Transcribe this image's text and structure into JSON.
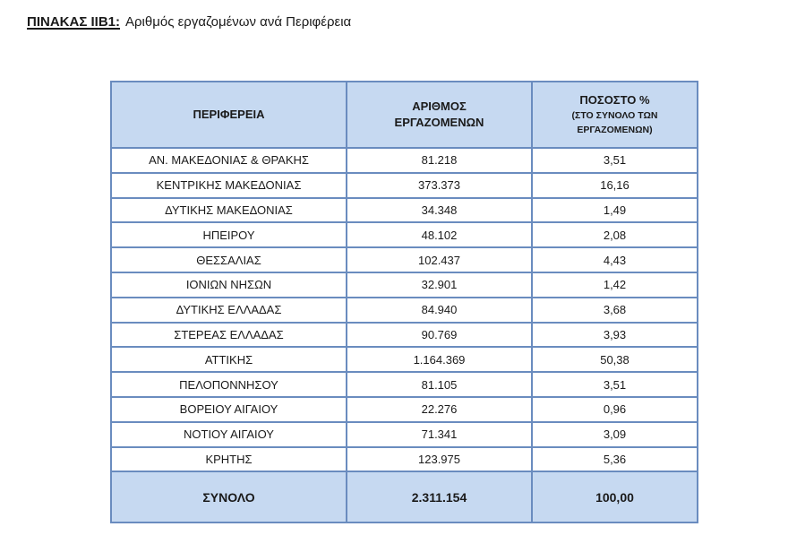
{
  "document": {
    "title_label": "ΠΙΝΑΚΑΣ ΙΙΒ1:",
    "title_caption": "Αριθμός εργαζομένων ανά Περιφέρεια"
  },
  "table": {
    "headers": {
      "region": "ΠΕΡΙΦΕΡΕΙΑ",
      "employees_line1": "ΑΡΙΘΜΟΣ",
      "employees_line2": "ΕΡΓΑΖΟΜΕΝΩΝ",
      "percent_main": "ΠΟΣΟΣΤΟ %",
      "percent_sub1": "(ΣΤΟ ΣΥΝΟΛΟ ΤΩΝ",
      "percent_sub2": "ΕΡΓΑΖΟΜΕΝΩΝ)"
    },
    "rows": [
      {
        "region": "ΑΝ. ΜΑΚΕΔΟΝΙΑΣ & ΘΡΑΚΗΣ",
        "employees": "81.218",
        "percent": "3,51"
      },
      {
        "region": "ΚΕΝΤΡΙΚΗΣ ΜΑΚΕΔΟΝΙΑΣ",
        "employees": "373.373",
        "percent": "16,16"
      },
      {
        "region": "ΔΥΤΙΚΗΣ ΜΑΚΕΔΟΝΙΑΣ",
        "employees": "34.348",
        "percent": "1,49"
      },
      {
        "region": "ΗΠΕΙΡΟΥ",
        "employees": "48.102",
        "percent": "2,08"
      },
      {
        "region": "ΘΕΣΣΑΛΙΑΣ",
        "employees": "102.437",
        "percent": "4,43"
      },
      {
        "region": "ΙΟΝΙΩΝ ΝΗΣΩΝ",
        "employees": "32.901",
        "percent": "1,42"
      },
      {
        "region": "ΔΥΤΙΚΗΣ ΕΛΛΑΔΑΣ",
        "employees": "84.940",
        "percent": "3,68"
      },
      {
        "region": "ΣΤΕΡΕΑΣ ΕΛΛΑΔΑΣ",
        "employees": "90.769",
        "percent": "3,93"
      },
      {
        "region": "ΑΤΤΙΚΗΣ",
        "employees": "1.164.369",
        "percent": "50,38"
      },
      {
        "region": "ΠΕΛΟΠΟΝΝΗΣΟΥ",
        "employees": "81.105",
        "percent": "3,51"
      },
      {
        "region": "ΒΟΡΕΙΟΥ ΑΙΓΑΙΟΥ",
        "employees": "22.276",
        "percent": "0,96"
      },
      {
        "region": "ΝΟΤΙΟΥ ΑΙΓΑΙΟΥ",
        "employees": "71.341",
        "percent": "3,09"
      },
      {
        "region": "ΚΡΗΤΗΣ",
        "employees": "123.975",
        "percent": "5,36"
      }
    ],
    "total": {
      "label": "ΣΥΝΟΛΟ",
      "employees": "2.311.154",
      "percent": "100,00"
    }
  },
  "colors": {
    "header_fill": "#c6d9f1",
    "border": "#6a8cbf"
  }
}
